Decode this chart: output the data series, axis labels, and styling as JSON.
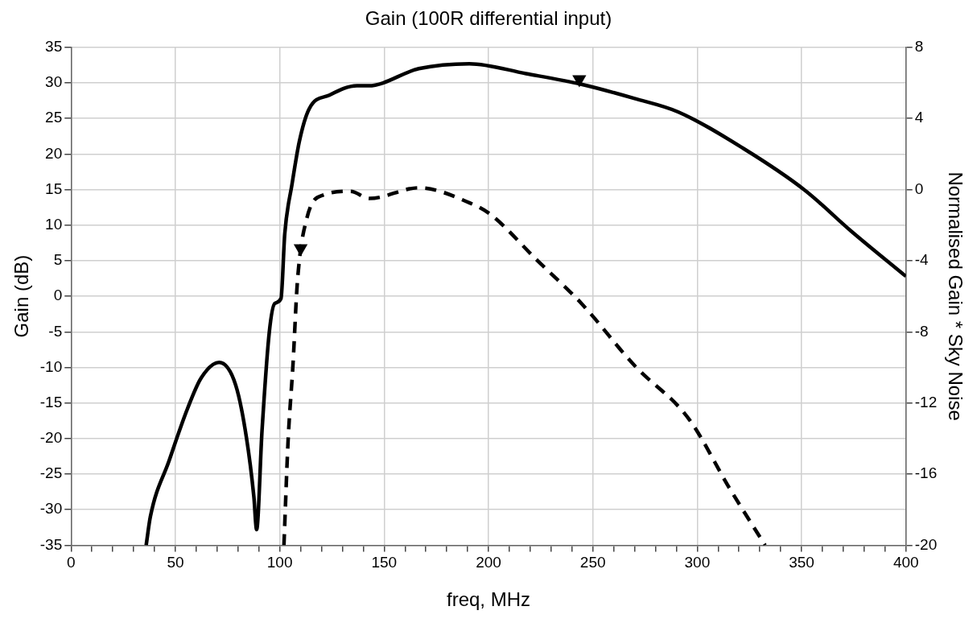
{
  "chart_data": {
    "type": "line",
    "title": "Gain (100R differential input)",
    "xlabel": "freq, MHz",
    "ylabel": "Gain (dB)",
    "y2label": "Normalised Gain * Sky Noise",
    "xlim": [
      0,
      400
    ],
    "xticks": [
      0,
      {
        "value": 10,
        "label": null
      },
      {
        "value": 20,
        "label": null
      },
      {
        "value": 30,
        "label": null
      },
      {
        "value": 40,
        "label": null
      },
      50,
      {
        "value": 60,
        "label": null
      },
      {
        "value": 70,
        "label": null
      },
      {
        "value": 80,
        "label": null
      },
      {
        "value": 90,
        "label": null
      },
      100,
      {
        "value": 110,
        "label": null
      },
      {
        "value": 120,
        "label": null
      },
      {
        "value": 130,
        "label": null
      },
      {
        "value": 140,
        "label": null
      },
      150,
      {
        "value": 160,
        "label": null
      },
      {
        "value": 170,
        "label": null
      },
      {
        "value": 180,
        "label": null
      },
      {
        "value": 190,
        "label": null
      },
      200,
      {
        "value": 210,
        "label": null
      },
      {
        "value": 220,
        "label": null
      },
      {
        "value": 230,
        "label": null
      },
      {
        "value": 240,
        "label": null
      },
      250,
      {
        "value": 260,
        "label": null
      },
      {
        "value": 270,
        "label": null
      },
      {
        "value": 280,
        "label": null
      },
      {
        "value": 290,
        "label": null
      },
      300,
      {
        "value": 310,
        "label": null
      },
      {
        "value": 320,
        "label": null
      },
      {
        "value": 330,
        "label": null
      },
      {
        "value": 340,
        "label": null
      },
      350,
      {
        "value": 360,
        "label": null
      },
      {
        "value": 370,
        "label": null
      },
      {
        "value": 380,
        "label": null
      },
      {
        "value": 390,
        "label": null
      },
      400
    ],
    "ylim": [
      -35,
      35
    ],
    "yticks": [
      -35,
      -30,
      -25,
      -20,
      -15,
      -10,
      -5,
      0,
      5,
      10,
      15,
      20,
      25,
      30,
      35
    ],
    "y2lim": [
      -20,
      8
    ],
    "y2ticks": [
      -20,
      -16,
      -12,
      -8,
      -4,
      0,
      4,
      8
    ],
    "grid": true,
    "legend": false,
    "series": [
      {
        "color": "#000000",
        "line_style": "solid",
        "x": [
          36,
          38,
          47,
          55.8,
          62.3,
          71,
          78.9,
          84,
          87.6,
          88.9,
          91.5,
          95,
          97.6,
          100.6,
          102.4,
          105.9,
          109.4,
          114,
          124,
          137,
          142.5,
          166.6,
          190.8,
          218,
          244.5,
          270,
          291,
          322,
          351.6,
          374,
          400
        ],
        "values": [
          -35,
          -31,
          -23.1,
          -15.8,
          -11.5,
          -9.3,
          -12.5,
          -19.8,
          -28.2,
          -32.8,
          -18.9,
          -5,
          -1,
          -0.3,
          8.8,
          15.8,
          21.8,
          26.3,
          28.3,
          29.6,
          29.6,
          32,
          32.7,
          31.3,
          29.8,
          27.8,
          25.9,
          20.8,
          14.9,
          9.1,
          2.8
        ]
      },
      {
        "color": "#000000",
        "line_style": "dashed",
        "axis": "y2",
        "x": [
          102,
          104,
          106.3,
          108.5,
          113,
          121,
          134,
          143,
          166.6,
          191,
          201,
          223.5,
          244.5,
          270,
          296,
          315.5,
          332.5
        ],
        "values": [
          -20,
          -14.1,
          -9.9,
          -5.1,
          -1.6,
          -0.3,
          -0.1,
          -0.5,
          0.1,
          -0.75,
          -1.4,
          -4,
          -6.4,
          -9.9,
          -12.9,
          -16.8,
          -20
        ]
      },
      {
        "type": "scatter",
        "color": "#000000",
        "marker": "triangle",
        "x": [
          243.5
        ],
        "values": [
          30.5
        ]
      },
      {
        "type": "scatter",
        "color": "#000000",
        "marker": "triangle",
        "axis": "y2",
        "x": [
          110
        ],
        "values": [
          -3.3
        ]
      }
    ]
  }
}
